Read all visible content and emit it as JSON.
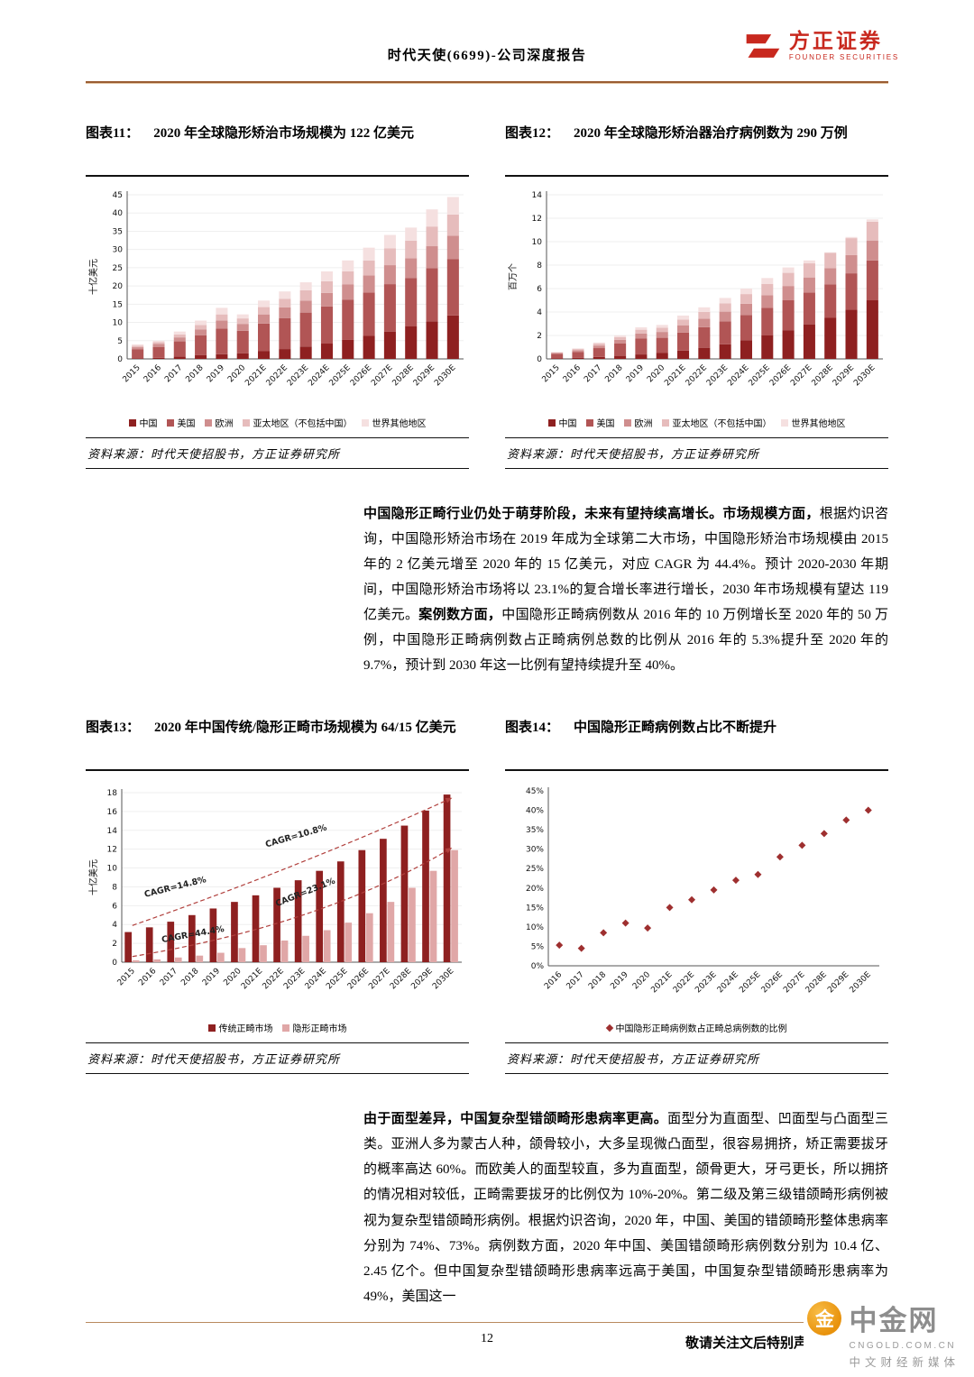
{
  "page": {
    "header_title": "时代天使(6699)-公司深度报告",
    "logo_text": "方正证券",
    "logo_subtext": "FOUNDER SECURITIES",
    "page_number": "12",
    "footer_note": "敬请关注文后特别声明与免责条款",
    "watermark": {
      "name": "中金网",
      "icon_char": "金",
      "domain": "CNGOLD.COM.CN",
      "slogan": "中文财经新媒体"
    }
  },
  "chart_data": [
    {
      "id": "fig11",
      "type": "stacked_bar",
      "label": "图表11：",
      "title": "2020 年全球隐形矫治市场规模为 122 亿美元",
      "ylabel": "十亿美元",
      "ylim": [
        0,
        45
      ],
      "ytick": 5,
      "categories": [
        "2015",
        "2016",
        "2017",
        "2018",
        "2019",
        "2020",
        "2021E",
        "2022E",
        "2023E",
        "2024E",
        "2025E",
        "2026E",
        "2027E",
        "2028E",
        "2029E",
        "2030E"
      ],
      "series": [
        {
          "name": "中国",
          "values": [
            0.2,
            0.3,
            0.6,
            1.0,
            1.3,
            1.5,
            2.1,
            2.7,
            3.4,
            4.2,
            5.2,
            6.3,
            7.5,
            8.9,
            10.3,
            11.9
          ]
        },
        {
          "name": "美国",
          "values": [
            2.4,
            3.0,
            4.2,
            5.5,
            7.0,
            6.2,
            7.6,
            8.5,
            9.3,
            10.2,
            11.0,
            11.9,
            13.0,
            13.3,
            14.6,
            15.5
          ]
        },
        {
          "name": "欧洲",
          "values": [
            0.6,
            0.8,
            1.1,
            1.6,
            2.2,
            1.9,
            2.5,
            2.9,
            3.3,
            3.7,
            4.2,
            4.7,
            5.2,
            5.4,
            6.0,
            6.4
          ]
        },
        {
          "name": "亚太地区（不包括中国）",
          "values": [
            0.4,
            0.5,
            0.8,
            1.2,
            1.7,
            1.5,
            2.0,
            2.4,
            2.8,
            3.2,
            3.6,
            4.1,
            4.6,
            4.8,
            5.4,
            5.8
          ]
        },
        {
          "name": "世界其他地区",
          "values": [
            0.4,
            0.4,
            0.8,
            1.2,
            1.8,
            1.1,
            1.8,
            2.0,
            2.2,
            2.7,
            3.0,
            3.5,
            3.7,
            3.6,
            4.7,
            4.8
          ]
        }
      ],
      "colors": [
        "#8e2020",
        "#b15555",
        "#cf8e8e",
        "#e6bcbc",
        "#f5e0e0"
      ],
      "source": "资料来源：时代天使招股书，方正证券研究所"
    },
    {
      "id": "fig12",
      "type": "stacked_bar",
      "label": "图表12：",
      "title": "2020 年全球隐形矫治器治疗病例数为 290 万例",
      "ylabel": "百万个",
      "ylim": [
        0,
        14
      ],
      "ytick": 2,
      "categories": [
        "2015",
        "2016",
        "2017",
        "2018",
        "2019",
        "2020",
        "2021E",
        "2022E",
        "2023E",
        "2024E",
        "2025E",
        "2026E",
        "2027E",
        "2028E",
        "2029E",
        "2030E"
      ],
      "series": [
        {
          "name": "中国",
          "values": [
            0.04,
            0.1,
            0.17,
            0.26,
            0.38,
            0.5,
            0.7,
            0.95,
            1.25,
            1.6,
            2.0,
            2.45,
            2.95,
            3.5,
            4.2,
            5.0
          ]
        },
        {
          "name": "美国",
          "values": [
            0.38,
            0.5,
            0.75,
            1.05,
            1.35,
            1.3,
            1.55,
            1.75,
            1.95,
            2.15,
            2.35,
            2.55,
            2.7,
            2.85,
            3.1,
            3.4
          ]
        },
        {
          "name": "欧洲",
          "values": [
            0.08,
            0.14,
            0.22,
            0.32,
            0.44,
            0.5,
            0.62,
            0.72,
            0.83,
            0.95,
            1.08,
            1.22,
            1.3,
            1.4,
            1.55,
            1.7
          ]
        },
        {
          "name": "亚太地区（不包括中国）",
          "values": [
            0.05,
            0.1,
            0.16,
            0.23,
            0.32,
            0.36,
            0.48,
            0.58,
            0.7,
            0.83,
            0.97,
            1.12,
            1.2,
            1.3,
            1.45,
            1.6
          ]
        },
        {
          "name": "世界其他地区",
          "values": [
            0.05,
            0.06,
            0.1,
            0.14,
            0.21,
            0.24,
            0.35,
            0.4,
            0.47,
            0.47,
            0.5,
            0.46,
            0.25,
            0.05,
            0.1,
            0.2
          ]
        }
      ],
      "colors": [
        "#8e2020",
        "#b15555",
        "#cf8e8e",
        "#e6bcbc",
        "#f5e0e0"
      ],
      "source": "资料来源：时代天使招股书，方正证券研究所"
    },
    {
      "id": "fig13",
      "type": "grouped_bar",
      "label": "图表13：",
      "title": "2020 年中国传统/隐形正畸市场规模为 64/15 亿美元",
      "ylabel": "十亿美元",
      "ylim": [
        0,
        18
      ],
      "ytick": 2,
      "categories": [
        "2015",
        "2016",
        "2017",
        "2018",
        "2019",
        "2020",
        "2021E",
        "2022E",
        "2023E",
        "2024E",
        "2025E",
        "2026E",
        "2027E",
        "2028E",
        "2029E",
        "2030E"
      ],
      "series": [
        {
          "name": "传统正畸市场",
          "values": [
            3.2,
            3.7,
            4.3,
            5.0,
            5.7,
            6.4,
            7.1,
            7.9,
            8.7,
            9.7,
            10.7,
            11.9,
            13.1,
            14.5,
            16.1,
            17.8
          ]
        },
        {
          "name": "隐形正畸市场",
          "values": [
            0.2,
            0.3,
            0.5,
            0.7,
            1.0,
            1.5,
            1.8,
            2.3,
            2.8,
            3.4,
            4.2,
            5.2,
            6.4,
            7.9,
            9.7,
            11.9
          ]
        }
      ],
      "colors": [
        "#8e2020",
        "#e0a7a7"
      ],
      "annotations": [
        {
          "text": "CAGR=14.8%",
          "at": [
            0.6,
            6.9
          ],
          "rotate": -14
        },
        {
          "text": "CAGR=10.8%",
          "at": [
            6.3,
            12.2
          ],
          "rotate": -16
        },
        {
          "text": "CAGR=44.4%",
          "at": [
            1.4,
            2.1
          ],
          "rotate": -10
        },
        {
          "text": "CAGR=23.1%",
          "at": [
            6.8,
            5.9
          ],
          "rotate": -22
        }
      ],
      "arrows": [
        {
          "from": [
            0,
            3.9
          ],
          "ctrl": [
            8,
            10.2
          ],
          "to": [
            15,
            17.4
          ]
        },
        {
          "from": [
            0,
            0.6
          ],
          "ctrl": [
            9,
            4.0
          ],
          "to": [
            15,
            12.1
          ]
        }
      ],
      "source": "资料来源：时代天使招股书，方正证券研究所"
    },
    {
      "id": "fig14",
      "type": "scatter",
      "label": "图表14：",
      "title": "中国隐形正畸病例数占比不断提升",
      "ylabel": "",
      "percent": true,
      "ylim": [
        0,
        45
      ],
      "ytick": 5,
      "categories": [
        "2016",
        "2017",
        "2018",
        "2019",
        "2020",
        "2021E",
        "2022E",
        "2023E",
        "2024E",
        "2025E",
        "2026E",
        "2027E",
        "2028E",
        "2029E",
        "2030E"
      ],
      "values": [
        5.3,
        4.5,
        8.5,
        11,
        9.7,
        15,
        17,
        19.5,
        22,
        23.5,
        28,
        31,
        34,
        37.5,
        40
      ],
      "marker": "diamond",
      "legend": [
        "中国隐形正畸病例数占正畸总病例数的比例"
      ],
      "colors": [
        "#9e2f2f"
      ],
      "source": "资料来源：时代天使招股书，方正证券研究所"
    }
  ],
  "paragraphs": {
    "p1": {
      "segments": [
        {
          "text": "中国隐形正畸行业仍处于萌芽阶段，未来有望持续高增长。市场规模方面，",
          "bold": true
        },
        {
          "text": "根据灼识咨询，中国隐形矫治市场在 2019 年成为全球第二大市场，中国隐形矫治市场规模由 2015 年的 2 亿美元增至 2020 年的 15 亿美元，对应 CAGR 为 44.4%。预计 2020-2030 年期间，中国隐形矫治市场将以 23.1%的复合增长率进行增长，2030 年市场规模有望达 119 亿美元。",
          "bold": false
        },
        {
          "text": "案例数方面，",
          "bold": true
        },
        {
          "text": "中国隐形正畸病例数从 2016 年的 10 万例增长至 2020 年的 50 万例，中国隐形正畸病例数占正畸病例总数的比例从 2016 年的 5.3%提升至 2020 年的 9.7%，预计到 2030 年这一比例有望持续提升至 40%。",
          "bold": false
        }
      ]
    },
    "p2": {
      "segments": [
        {
          "text": "由于面型差异，中国复杂型错颌畸形患病率更高。",
          "bold": true
        },
        {
          "text": "面型分为直面型、凹面型与凸面型三类。亚洲人多为蒙古人种，颌骨较小，大多呈现微凸面型，很容易拥挤，矫正需要拔牙的概率高达 60%。而欧美人的面型较直，多为直面型，颌骨更大，牙弓更长，所以拥挤的情况相对较低，正畸需要拔牙的比例仅为 10%-20%。第二级及第三级错颌畸形病例被视为复杂型错颌畸形病例。根据灼识咨询，2020 年，中国、美国的错颌畸形整体患病率分别为 74%、73%。病例数方面，2020 年中国、美国错颌畸形病例数分别为 10.4 亿、2.45 亿个。但中国复杂型错颌畸形患病率远高于美国，中国复杂型错颌畸形患病率为 49%，美国这一",
          "bold": false
        }
      ]
    }
  }
}
